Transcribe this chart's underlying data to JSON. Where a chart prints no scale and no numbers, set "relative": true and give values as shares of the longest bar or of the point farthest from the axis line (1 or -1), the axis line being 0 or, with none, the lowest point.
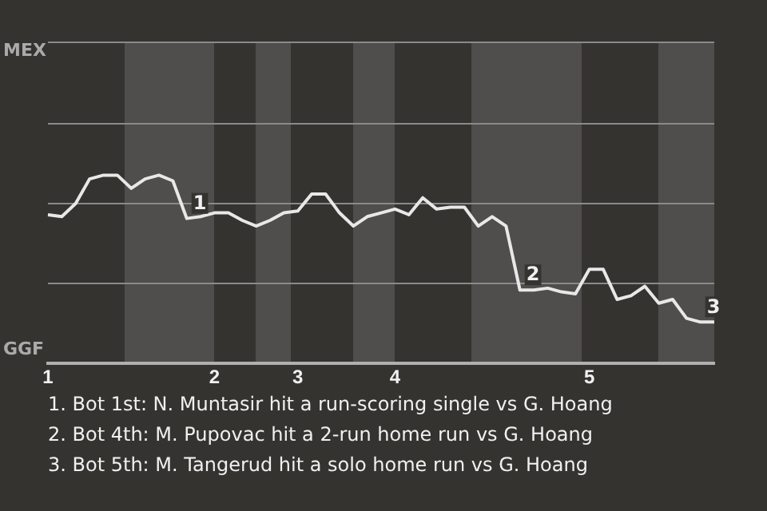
{
  "chart_data": {
    "type": "line",
    "relative": true,
    "categories": [
      "1",
      null,
      null,
      null,
      null,
      null,
      null,
      null,
      null,
      null,
      null,
      null,
      "2",
      null,
      null,
      null,
      null,
      null,
      "3",
      null,
      null,
      null,
      null,
      null,
      null,
      "4",
      null,
      null,
      null,
      null,
      null,
      null,
      null,
      null,
      null,
      null,
      null,
      null,
      null,
      "5",
      null,
      null,
      null,
      null,
      null,
      null,
      null,
      null,
      null
    ],
    "series": [
      {
        "color": "#e8e8e8",
        "values": [
          0.79,
          0.78,
          0.85,
          0.98,
          1,
          1,
          0.93,
          0.98,
          1,
          0.97,
          0.77,
          0.78,
          0.8,
          0.8,
          0.76,
          0.73,
          0.76,
          0.8,
          0.81,
          0.9,
          0.9,
          0.8,
          0.73,
          0.78,
          0.8,
          0.82,
          0.79,
          0.88,
          0.82,
          0.83,
          0.83,
          0.73,
          0.78,
          0.73,
          0.39,
          0.39,
          0.4,
          0.38,
          0.37,
          0.5,
          0.5,
          0.34,
          0.36,
          0.41,
          0.32,
          0.34,
          0.24,
          0.22,
          0.22
        ]
      }
    ],
    "legend": false,
    "marker": "none",
    "line_style": "solid",
    "ref_lines": [
      {
        "axis": "y",
        "value": 0.43,
        "color": "#8a8a8a"
      },
      {
        "axis": "y",
        "value": 0.85,
        "color": "#8a8a8a"
      },
      {
        "axis": "y",
        "value": 1.28,
        "color": "#8a8a8a"
      }
    ],
    "annotations": [
      "MEX",
      "GGF",
      {
        "text": "1",
        "y": 0.77
      },
      {
        "text": "2",
        "y": 0.39
      },
      {
        "text": "3",
        "y": 0.22
      },
      "1. Bot 1st: N. Muntasir hit a run-scoring single vs G. Hoang",
      "2. Bot 4th: M. Pupovac hit a 2-run home run vs G. Hoang",
      "3. Bot 5th: M. Tangerud hit a solo home run vs G. Hoang"
    ]
  }
}
